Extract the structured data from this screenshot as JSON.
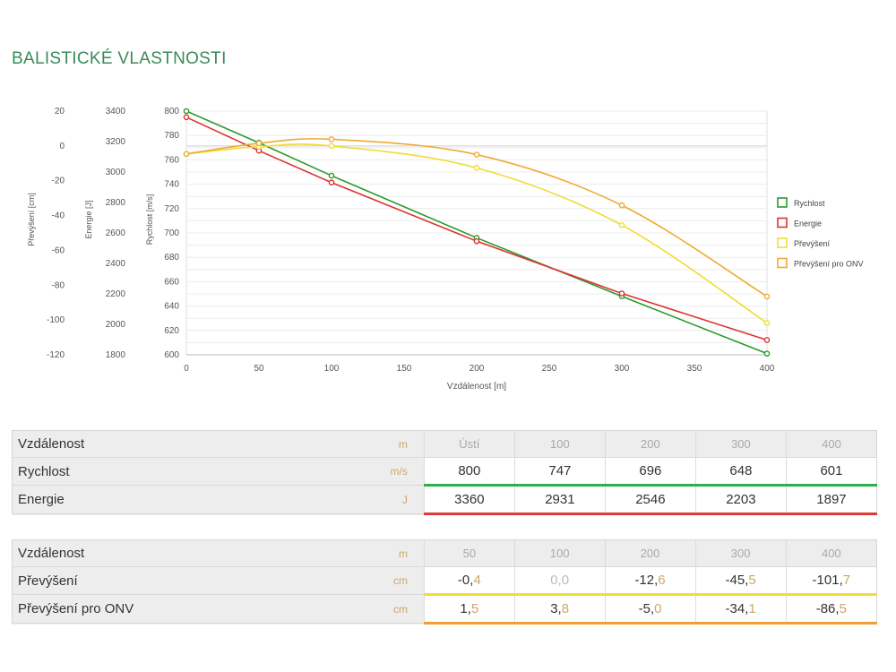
{
  "title": "BALISTICKÉ VLASTNOSTI",
  "chart_data": {
    "type": "line",
    "xlabel": "Vzdálenost [m]",
    "xlim": [
      0,
      400
    ],
    "xticks": [
      0,
      50,
      100,
      150,
      200,
      250,
      300,
      350,
      400
    ],
    "axes": [
      {
        "id": "vel",
        "label": "Rychlost [m/s]",
        "range": [
          600,
          800
        ],
        "ticks": [
          800,
          780,
          760,
          740,
          720,
          700,
          680,
          660,
          640,
          620,
          600
        ]
      },
      {
        "id": "energy",
        "label": "Energie [J]",
        "range": [
          1800,
          3400
        ],
        "ticks": [
          3400,
          3200,
          3000,
          2800,
          2600,
          2400,
          2200,
          2000,
          1800
        ]
      },
      {
        "id": "drop",
        "label": "Převýšení [cm]",
        "range": [
          -120,
          20
        ],
        "ticks": [
          20,
          0,
          -20,
          -40,
          -60,
          -80,
          -100,
          -120
        ]
      }
    ],
    "grid": true,
    "legend_position": "right",
    "series": [
      {
        "name": "Rychlost",
        "axis": "vel",
        "color": "#2a9a2a",
        "curve": "linear",
        "x": [
          0,
          50,
          100,
          200,
          300,
          400
        ],
        "y": [
          800,
          774,
          747,
          696,
          648,
          601
        ]
      },
      {
        "name": "Energie",
        "axis": "energy",
        "color": "#dd3333",
        "curve": "linear",
        "x": [
          0,
          50,
          100,
          200,
          300,
          400
        ],
        "y": [
          3360,
          3140,
          2931,
          2546,
          2203,
          1897
        ]
      },
      {
        "name": "Převýšení",
        "axis": "drop",
        "color": "#eedd33",
        "curve": "smooth",
        "x": [
          0,
          50,
          100,
          200,
          300,
          400
        ],
        "y": [
          -4.6,
          -0.4,
          0.0,
          -12.6,
          -45.5,
          -101.7
        ]
      },
      {
        "name": "Převýšení pro ONV",
        "axis": "drop",
        "color": "#eeaa33",
        "curve": "smooth",
        "x": [
          0,
          50,
          100,
          200,
          300,
          400
        ],
        "y": [
          -4.6,
          1.5,
          3.8,
          -5.0,
          -34.1,
          -86.5
        ]
      }
    ]
  },
  "table1": {
    "head": {
      "label": "Vzdálenost",
      "unit": "m",
      "cells": [
        "Ústí",
        "100",
        "200",
        "300",
        "400"
      ]
    },
    "rows": [
      {
        "label": "Rychlost",
        "unit": "m/s",
        "color": "#2db04b",
        "cells": [
          "800",
          "747",
          "696",
          "648",
          "601"
        ]
      },
      {
        "label": "Energie",
        "unit": "J",
        "color": "#e03a3a",
        "cells": [
          "3360",
          "2931",
          "2546",
          "2203",
          "1897"
        ]
      }
    ]
  },
  "table2": {
    "head": {
      "label": "Vzdálenost",
      "unit": "m",
      "cells": [
        "50",
        "100",
        "200",
        "300",
        "400"
      ]
    },
    "rows": [
      {
        "label": "Převýšení",
        "unit": "cm",
        "color": "#f2de30",
        "cells": [
          [
            "-0,",
            "4"
          ],
          [
            "0,",
            "0"
          ],
          [
            "-12,",
            "6"
          ],
          [
            "-45,",
            "5"
          ],
          [
            "-101,",
            "7"
          ]
        ],
        "muted_index": 1
      },
      {
        "label": "Převýšení pro ONV",
        "unit": "cm",
        "color": "#f0a030",
        "cells": [
          [
            "1,",
            "5"
          ],
          [
            "3,",
            "8"
          ],
          [
            "-5,",
            "0"
          ],
          [
            "-34,",
            "1"
          ],
          [
            "-86,",
            "5"
          ]
        ],
        "muted_index": -1
      }
    ]
  }
}
